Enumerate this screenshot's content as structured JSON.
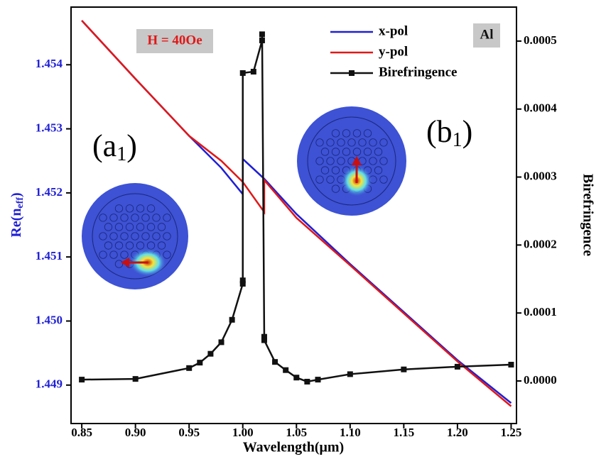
{
  "chart_data": {
    "type": "line",
    "xlabel": "Wavelength(μm)",
    "ylabel_parts": [
      "Re(n",
      "eff",
      ")"
    ],
    "y2label": "Birefringence",
    "annotations": [
      "H = 40Oe",
      "Al"
    ],
    "panel_labels": [
      [
        "(a",
        "1",
        ")"
      ],
      [
        "(b",
        "1",
        ")"
      ]
    ],
    "xlim": [
      0.84,
      1.255
    ],
    "ylim": [
      1.4484,
      1.4549
    ],
    "y2lim": [
      -6.26e-05,
      0.00055
    ],
    "xticks": [
      0.85,
      {
        "value": 0.9,
        "label": "0.90"
      },
      0.95,
      {
        "value": 1,
        "label": "1.00"
      },
      1.05,
      {
        "value": 1.1,
        "label": "1.10"
      },
      1.15,
      {
        "value": 1.2,
        "label": "1.20"
      },
      1.25
    ],
    "yticks": [
      1.449,
      {
        "value": 1.45,
        "label": "1.450"
      },
      1.451,
      1.452,
      1.453,
      1.454
    ],
    "y2ticks": [
      {
        "value": 0,
        "label": "0.0000"
      },
      {
        "value": 0.0001,
        "label": "0.0001"
      },
      {
        "value": 0.0002,
        "label": "0.0002"
      },
      {
        "value": 0.0003,
        "label": "0.0003"
      },
      {
        "value": 0.0004,
        "label": "0.0004"
      },
      {
        "value": 0.0005,
        "label": "0.0005"
      }
    ],
    "series": [
      {
        "name": "x-pol",
        "color": "#1f1fd6",
        "x": [
          0.85,
          0.9,
          0.95,
          0.98,
          1.0,
          1.0,
          1.02,
          1.05,
          1.1,
          1.15,
          1.2,
          1.25
        ],
        "values": [
          1.45469,
          1.45378,
          1.45289,
          1.45239,
          1.45198,
          1.45253,
          1.45222,
          1.45167,
          1.45089,
          1.45014,
          1.44939,
          1.44872
        ]
      },
      {
        "name": "y-pol",
        "color": "#e01818",
        "x": [
          0.85,
          0.9,
          0.95,
          0.98,
          1.0,
          1.02,
          1.02,
          1.05,
          1.1,
          1.15,
          1.2,
          1.25
        ],
        "values": [
          1.45469,
          1.45378,
          1.45289,
          1.4525,
          1.45217,
          1.4517,
          1.4522,
          1.45161,
          1.45087,
          1.45012,
          1.44937,
          1.44867
        ]
      },
      {
        "name": "Birefringence",
        "color": "#111111",
        "axis": "y2",
        "marker": "square",
        "x": [
          0.85,
          0.9,
          0.95,
          0.96,
          0.97,
          0.98,
          0.99,
          1.0,
          1.0,
          1.0,
          1.01,
          1.018,
          1.018,
          1.02,
          1.02,
          1.03,
          1.04,
          1.05,
          1.06,
          1.07,
          1.1,
          1.15,
          1.2,
          1.25
        ],
        "values": [
          2e-06,
          3e-06,
          1.9e-05,
          2.7e-05,
          4e-05,
          5.7e-05,
          9e-05,
          0.000143,
          0.000148,
          0.000453,
          0.000455,
          0.000501,
          0.00051,
          6.5e-05,
          6e-05,
          2.8e-05,
          1.6e-05,
          5e-06,
          -1e-06,
          2e-06,
          1e-05,
          1.7e-05,
          2.1e-05,
          2.4e-05
        ]
      }
    ]
  }
}
